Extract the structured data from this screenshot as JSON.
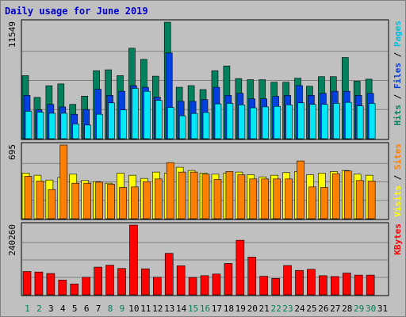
{
  "chart_data": {
    "type": "bar",
    "title": "Daily usage for June 2019",
    "categories": [
      "1",
      "2",
      "3",
      "4",
      "5",
      "6",
      "7",
      "8",
      "9",
      "10",
      "11",
      "12",
      "13",
      "14",
      "15",
      "16",
      "17",
      "18",
      "19",
      "20",
      "21",
      "22",
      "23",
      "24",
      "25",
      "26",
      "27",
      "28",
      "29",
      "30",
      "31"
    ],
    "weekend_days": [
      "1",
      "2",
      "8",
      "9",
      "15",
      "16",
      "22",
      "23",
      "29",
      "30"
    ],
    "panels": [
      {
        "id": "top",
        "max_label": "11549",
        "ymax": 11549,
        "right_labels": [
          {
            "text": "Pages",
            "color": "#00c0e0"
          },
          {
            "text": "Files",
            "color": "#0040e0"
          },
          {
            "text": "Hits",
            "color": "#00805c"
          }
        ],
        "series": [
          {
            "name": "Hits",
            "color": "#00805c",
            "values": [
              6250,
              4090,
              5250,
              5430,
              3400,
              4220,
              6740,
              6830,
              6250,
              8970,
              7860,
              6200,
              11549,
              5100,
              5260,
              4870,
              6740,
              7210,
              5960,
              5850,
              5850,
              5600,
              5600,
              6000,
              5200,
              6150,
              6150,
              8050,
              5700,
              5900,
              null
            ]
          },
          {
            "name": "Files",
            "color": "#0040e0",
            "values": [
              4290,
              2860,
              3400,
              3150,
              2420,
              2900,
              4900,
              4290,
              4700,
              5260,
              5100,
              4120,
              8500,
              3700,
              3700,
              3870,
              5100,
              4290,
              4500,
              3950,
              3950,
              4200,
              4290,
              5260,
              4290,
              4500,
              4700,
              4700,
              4290,
              4500,
              null
            ]
          },
          {
            "name": "Pages",
            "color": "#00e8f8",
            "values": [
              2720,
              2630,
              2520,
              2520,
              1450,
              1350,
              2420,
              3550,
              2850,
              4990,
              4700,
              3800,
              3100,
              2270,
              2500,
              2600,
              3450,
              3500,
              3350,
              3060,
              3150,
              3200,
              3350,
              3550,
              3400,
              3400,
              3500,
              3600,
              3250,
              3500,
              null
            ]
          }
        ]
      },
      {
        "id": "middle",
        "max_label": "695",
        "ymax": 695,
        "right_labels": [
          {
            "text": "Sites",
            "color": "#ff8000"
          },
          {
            "text": "Visits",
            "color": "#ffff00"
          }
        ],
        "series": [
          {
            "name": "Visits",
            "color": "#ffff00",
            "values": [
              430,
              410,
              365,
              390,
              420,
              360,
              350,
              335,
              430,
              410,
              380,
              440,
              430,
              485,
              455,
              430,
              420,
              430,
              440,
              415,
              395,
              410,
              435,
              445,
              415,
              430,
              445,
              455,
              420,
              410,
              null
            ]
          },
          {
            "name": "Sites",
            "color": "#ff8000",
            "values": [
              400,
              355,
              275,
              695,
              335,
              335,
              345,
              325,
              295,
              300,
              350,
              375,
              530,
              440,
              440,
              420,
              370,
              445,
              415,
              375,
              375,
              375,
              375,
              545,
              300,
              295,
              425,
              450,
              360,
              355,
              null
            ]
          }
        ]
      },
      {
        "id": "bottom",
        "max_label": "240260",
        "ymax": 240260,
        "right_labels": [
          {
            "text": "KBytes",
            "color": "#ff0000"
          }
        ],
        "series": [
          {
            "name": "KBytes",
            "color": "#ff0000",
            "values": [
              80500,
              78600,
              73500,
              51000,
              37500,
              60500,
              95400,
              102000,
              90800,
              240260,
              89700,
              60500,
              143000,
              100000,
              60000,
              66000,
              71600,
              108000,
              188000,
              130000,
              64000,
              56500,
              101000,
              84000,
              88000,
              66000,
              63000,
              75000,
              68000,
              68000,
              null
            ]
          }
        ]
      }
    ]
  }
}
